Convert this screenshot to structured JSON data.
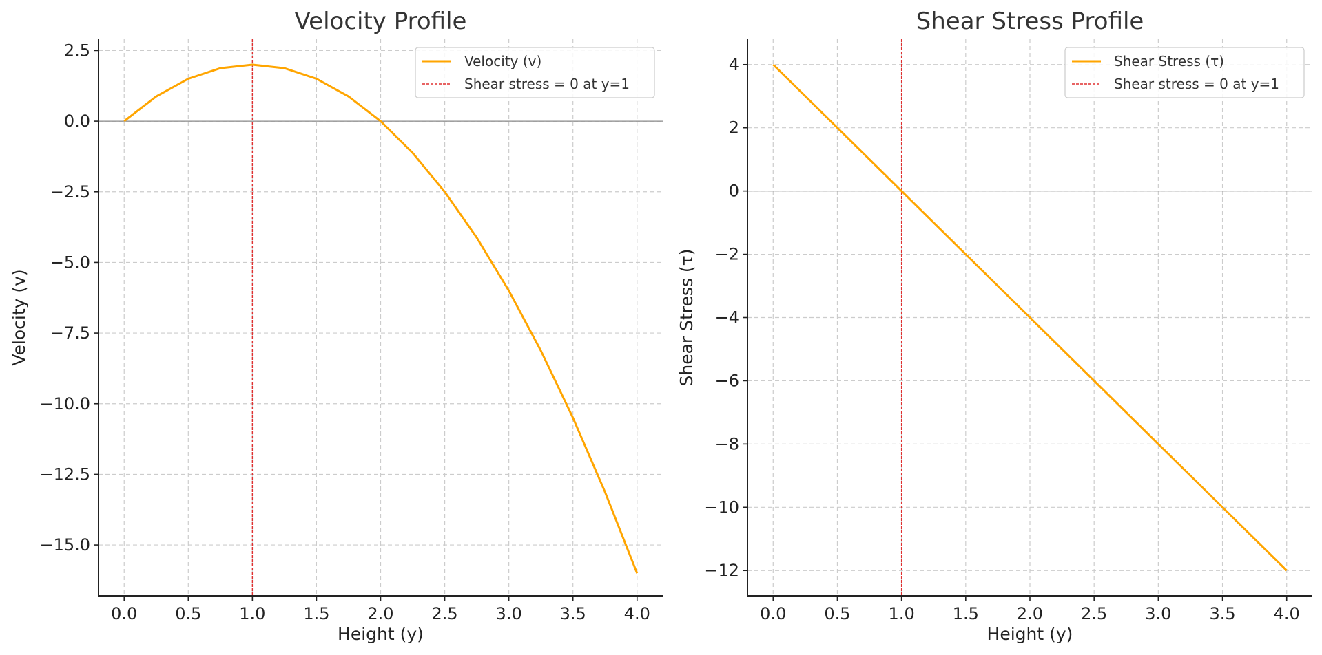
{
  "chart_data": [
    {
      "type": "line",
      "title": "Velocity Profile",
      "xlabel": "Height (y)",
      "ylabel": "Velocity (v)",
      "xlim": [
        -0.2,
        4.2
      ],
      "ylim": [
        -16.8,
        2.9
      ],
      "xticks": [
        0.0,
        0.5,
        1.0,
        1.5,
        2.0,
        2.5,
        3.0,
        3.5,
        4.0
      ],
      "xtick_labels": [
        "0.0",
        "0.5",
        "1.0",
        "1.5",
        "2.0",
        "2.5",
        "3.0",
        "3.5",
        "4.0"
      ],
      "yticks": [
        2.5,
        0.0,
        -2.5,
        -5.0,
        -7.5,
        -10.0,
        -12.5,
        -15.0
      ],
      "ytick_labels": [
        "2.5",
        "0.0",
        "−2.5",
        "−5.0",
        "−7.5",
        "−10.0",
        "−12.5",
        "−15.0"
      ],
      "grid": true,
      "legend_position": "top-right",
      "series": [
        {
          "name": "Velocity (v)",
          "color": "#ffa500",
          "x": [
            0.0,
            0.25,
            0.5,
            0.75,
            1.0,
            1.25,
            1.5,
            1.75,
            2.0,
            2.25,
            2.5,
            2.75,
            3.0,
            3.25,
            3.5,
            3.75,
            4.0
          ],
          "y": [
            0.0,
            0.875,
            1.5,
            1.875,
            2.0,
            1.875,
            1.5,
            0.875,
            0.0,
            -1.125,
            -2.5,
            -4.125,
            -6.0,
            -8.125,
            -10.5,
            -13.125,
            -16.0
          ]
        }
      ],
      "reference_lines": [
        {
          "label": "Shear stress = 0 at y=1",
          "orientation": "vertical",
          "x": 1.0,
          "color": "#e03030",
          "style": "dashed"
        },
        {
          "orientation": "horizontal",
          "y": 0.0,
          "color": "#888888",
          "style": "solid"
        }
      ]
    },
    {
      "type": "line",
      "title": "Shear Stress Profile",
      "xlabel": "Height (y)",
      "ylabel": "Shear Stress (τ)",
      "xlim": [
        -0.2,
        4.2
      ],
      "ylim": [
        -12.8,
        4.8
      ],
      "xticks": [
        0.0,
        0.5,
        1.0,
        1.5,
        2.0,
        2.5,
        3.0,
        3.5,
        4.0
      ],
      "xtick_labels": [
        "0.0",
        "0.5",
        "1.0",
        "1.5",
        "2.0",
        "2.5",
        "3.0",
        "3.5",
        "4.0"
      ],
      "yticks": [
        4,
        2,
        0,
        -2,
        -4,
        -6,
        -8,
        -10,
        -12
      ],
      "ytick_labels": [
        "4",
        "2",
        "0",
        "−2",
        "−4",
        "−6",
        "−8",
        "−10",
        "−12"
      ],
      "grid": true,
      "legend_position": "top-right",
      "series": [
        {
          "name": "Shear Stress (τ)",
          "color": "#ffa500",
          "x": [
            0.0,
            4.0
          ],
          "y": [
            4.0,
            -12.0
          ]
        }
      ],
      "reference_lines": [
        {
          "label": "Shear stress = 0 at y=1",
          "orientation": "vertical",
          "x": 1.0,
          "color": "#e03030",
          "style": "dashed"
        },
        {
          "orientation": "horizontal",
          "y": 0.0,
          "color": "#888888",
          "style": "solid"
        }
      ]
    }
  ]
}
